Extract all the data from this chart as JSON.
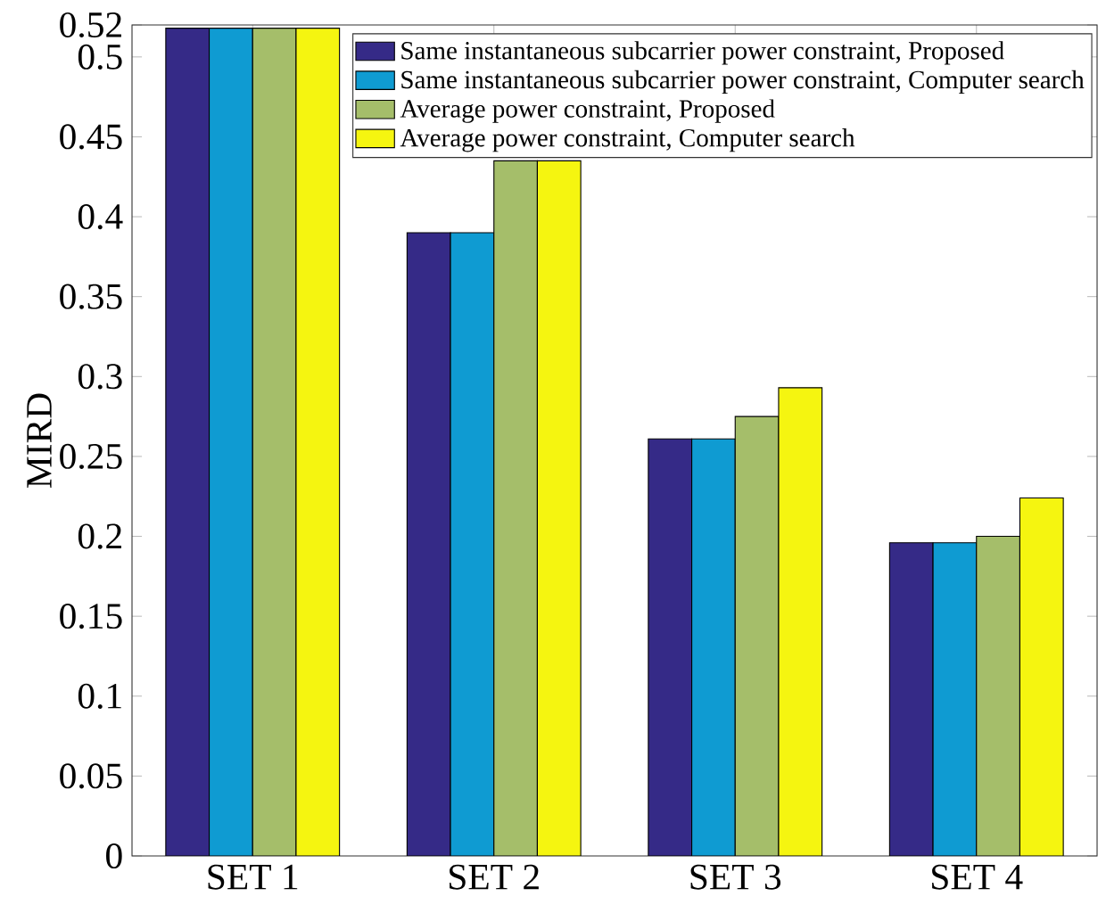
{
  "chart_data": {
    "type": "bar",
    "ylabel": "MIRD",
    "categories": [
      "SET 1",
      "SET 2",
      "SET 3",
      "SET 4"
    ],
    "series": [
      {
        "name": "Same instantaneous subcarrier power constraint, Proposed",
        "color": "#352a87",
        "values": [
          0.518,
          0.39,
          0.261,
          0.196
        ]
      },
      {
        "name": "Same instantaneous subcarrier power constraint, Computer search",
        "color": "#0f9bd2",
        "values": [
          0.518,
          0.39,
          0.261,
          0.196
        ]
      },
      {
        "name": "Average power constraint, Proposed",
        "color": "#a5be6a",
        "values": [
          0.518,
          0.435,
          0.275,
          0.2
        ]
      },
      {
        "name": "Average power constraint, Computer search",
        "color": "#f5f510",
        "values": [
          0.518,
          0.435,
          0.293,
          0.224
        ]
      }
    ],
    "ylim": [
      0,
      0.52
    ],
    "yticks": [
      0,
      0.05,
      0.1,
      0.15,
      0.2,
      0.25,
      0.3,
      0.35,
      0.4,
      0.45,
      0.5,
      0.52
    ],
    "grid": false,
    "legend": "top right"
  }
}
